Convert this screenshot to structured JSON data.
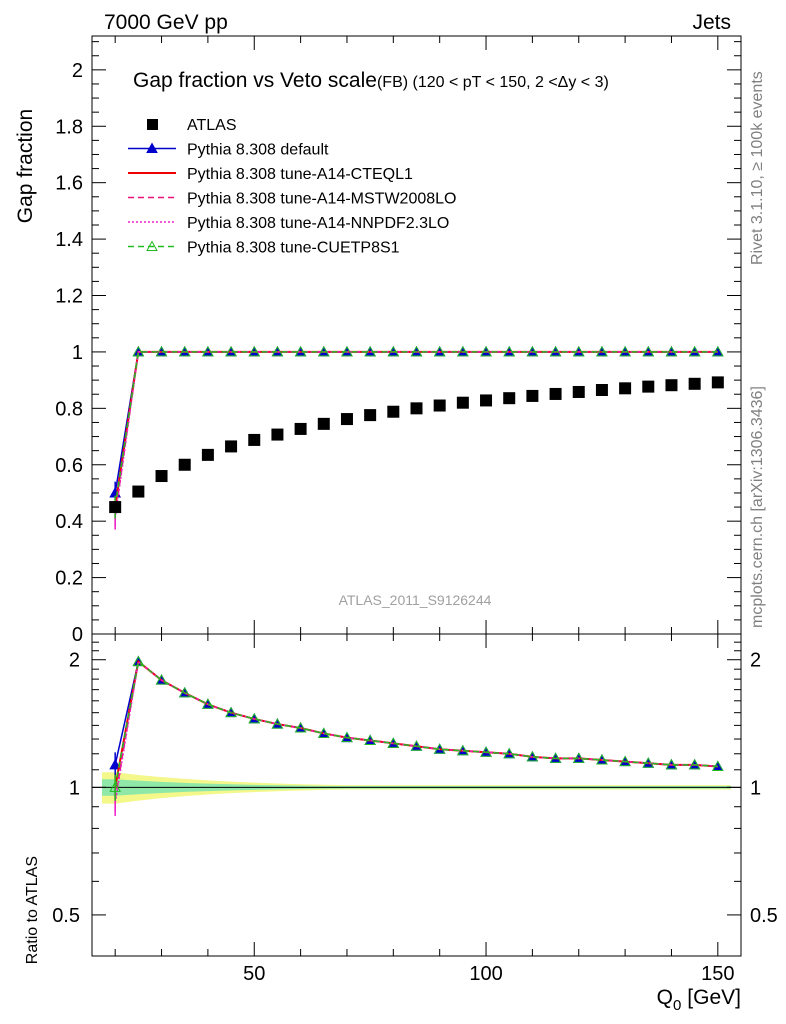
{
  "header": {
    "left": "7000 GeV pp",
    "right": "Jets"
  },
  "side_labels": {
    "rivet": "Rivet 3.1.10, ≥ 100k events",
    "mcplots": "mcplots.cern.ch [arXiv:1306.3436]"
  },
  "watermark": "ATLAS_2011_S9126244",
  "chart_data": {
    "type": "scatter",
    "title_main": "Gap fraction vs Veto scale",
    "title_sub": "(FB) (120 < pT < 150, 2 <Δy < 3)",
    "xlabel": "Q",
    "xlabel_sub": "0",
    "xlabel_unit": "[GeV]",
    "ylabel_main": "Gap fraction",
    "ylabel_ratio": "Ratio to ATLAS",
    "xlim": [
      15,
      155
    ],
    "ylim_main": [
      0,
      2.12
    ],
    "ylim_ratio": [
      0.4,
      2.3
    ],
    "x_ticks": [
      "50",
      "100",
      "150"
    ],
    "y_ticks_main": [
      "0",
      "0.2",
      "0.4",
      "0.6",
      "0.8",
      "1",
      "1.2",
      "1.4",
      "1.6",
      "1.8",
      "2"
    ],
    "y_ticks_ratio": [
      "0.5",
      "1",
      "2"
    ],
    "x": [
      20,
      25,
      30,
      35,
      40,
      45,
      50,
      55,
      60,
      65,
      70,
      75,
      80,
      85,
      90,
      95,
      100,
      105,
      110,
      115,
      120,
      125,
      130,
      135,
      140,
      145,
      150
    ],
    "atlas": [
      0.45,
      0.505,
      0.56,
      0.6,
      0.635,
      0.665,
      0.688,
      0.707,
      0.727,
      0.745,
      0.762,
      0.776,
      0.788,
      0.8,
      0.81,
      0.82,
      0.828,
      0.836,
      0.844,
      0.851,
      0.858,
      0.865,
      0.871,
      0.877,
      0.882,
      0.887,
      0.892
    ],
    "mc_values": [
      0.47,
      1,
      1,
      1,
      1,
      1,
      1,
      1,
      1,
      1,
      1,
      1,
      1,
      1,
      1,
      1,
      1,
      1,
      1,
      1,
      1,
      1,
      1,
      1,
      1,
      1,
      1
    ],
    "ratio_values": [
      1.04,
      1.98,
      1.79,
      1.67,
      1.57,
      1.5,
      1.45,
      1.41,
      1.38,
      1.34,
      1.31,
      1.29,
      1.27,
      1.25,
      1.23,
      1.22,
      1.21,
      1.2,
      1.18,
      1.17,
      1.17,
      1.16,
      1.15,
      1.14,
      1.13,
      1.13,
      1.12
    ],
    "series": [
      {
        "name": "ATLAS",
        "color": "#000000",
        "style": "square-marker"
      },
      {
        "name": "Pythia 8.308 default",
        "color": "#0000cc",
        "style": "solid-triangle",
        "first_y": 0.5,
        "first_ratio": 1.13
      },
      {
        "name": "Pythia 8.308 tune-A14-CTEQL1",
        "color": "#ee0000",
        "style": "solid",
        "first_y": 0.45,
        "first_ratio": 1.0
      },
      {
        "name": "Pythia 8.308 tune-A14-MSTW2008LO",
        "color": "#ee1177",
        "style": "dashed",
        "first_y": 0.42,
        "first_ratio": 0.94
      },
      {
        "name": "Pythia 8.308 tune-A14-NNPDF2.3LO",
        "color": "#ee22cc",
        "style": "dotted",
        "first_y": 0.41,
        "first_ratio": 0.92
      },
      {
        "name": "Pythia 8.308 tune-CUETP8S1",
        "color": "#22bb22",
        "style": "dashed-open-triangle",
        "first_y": 0.45,
        "first_ratio": 1.0
      }
    ],
    "legend_position": "top-left",
    "grid": false
  }
}
